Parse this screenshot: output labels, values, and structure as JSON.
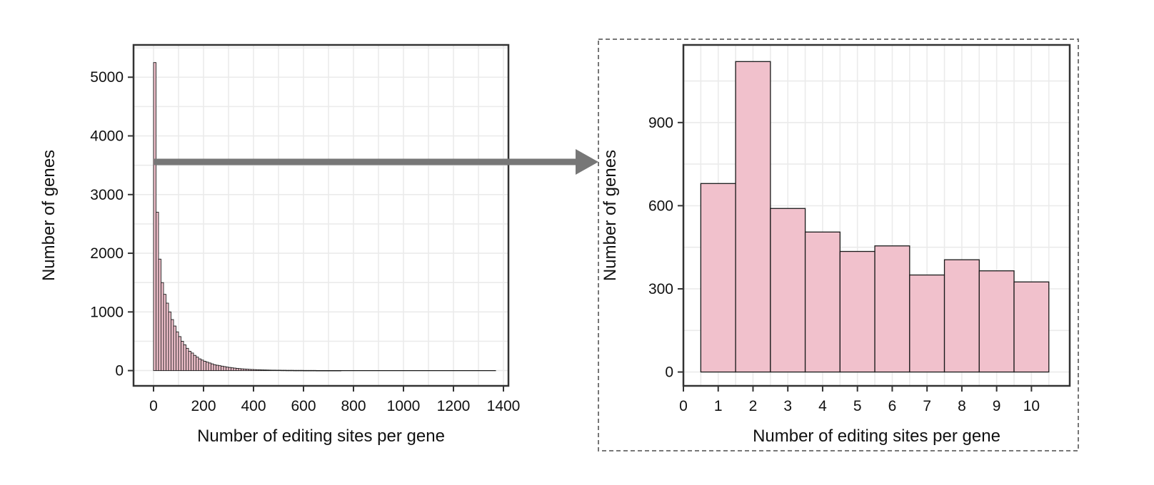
{
  "chart_data": [
    {
      "type": "bar",
      "xlabel": "Number of editing sites per gene",
      "ylabel": "Number of genes",
      "xlim": [
        -80,
        1420
      ],
      "ylim": [
        -260,
        5550
      ],
      "x_ticks": [
        "0",
        "200",
        "400",
        "600",
        "800",
        "1000",
        "1200",
        "1400"
      ],
      "y_ticks": [
        "0",
        "1000",
        "2000",
        "3000",
        "4000",
        "5000"
      ],
      "bin_width": 10,
      "x": [
        0,
        10,
        20,
        30,
        40,
        50,
        60,
        70,
        80,
        90,
        100,
        110,
        120,
        130,
        140,
        150,
        160,
        170,
        180,
        190,
        200,
        210,
        220,
        230,
        240,
        250,
        260,
        270,
        280,
        290,
        300,
        310,
        320,
        330,
        340,
        350,
        360,
        370,
        380,
        390,
        400,
        410,
        420,
        430,
        440,
        450,
        460,
        470,
        480,
        490,
        500,
        510,
        520,
        530,
        540,
        550,
        560,
        570,
        580,
        590,
        600,
        610,
        620,
        630,
        640,
        650,
        660,
        670,
        680,
        690,
        700,
        710,
        720,
        730,
        740
      ],
      "values": [
        5250,
        2700,
        1900,
        1500,
        1300,
        1150,
        1000,
        870,
        760,
        660,
        580,
        500,
        440,
        380,
        330,
        300,
        260,
        230,
        200,
        180,
        160,
        145,
        130,
        115,
        100,
        92,
        84,
        76,
        68,
        60,
        54,
        48,
        43,
        38,
        34,
        30,
        27,
        24,
        21,
        19,
        17,
        15,
        14,
        12,
        11,
        10,
        9,
        8,
        8,
        7,
        7,
        6,
        6,
        5,
        5,
        5,
        4,
        4,
        4,
        4,
        3,
        3,
        3,
        3,
        3,
        2,
        2,
        2,
        2,
        2,
        2,
        2,
        2,
        2,
        2
      ],
      "tail_max_x": 1370,
      "fill": "#f1c1cc",
      "stroke": "#1a1a1a",
      "grid": true
    },
    {
      "type": "bar",
      "xlabel": "Number of editing sites per gene",
      "ylabel": "Number of genes",
      "xlim": [
        0,
        11.1
      ],
      "ylim": [
        -50,
        1180
      ],
      "x_ticks": [
        "0",
        "1",
        "2",
        "3",
        "4",
        "5",
        "6",
        "7",
        "8",
        "9",
        "10"
      ],
      "y_ticks": [
        "0",
        "300",
        "600",
        "900"
      ],
      "categories": [
        1,
        2,
        3,
        4,
        5,
        6,
        7,
        8,
        9,
        10
      ],
      "values": [
        680,
        1120,
        590,
        505,
        435,
        455,
        350,
        405,
        365,
        325
      ],
      "fill": "#f1c1cc",
      "stroke": "#1a1a1a",
      "grid": true,
      "frame": "dashed"
    }
  ],
  "arrow_color": "#777777"
}
